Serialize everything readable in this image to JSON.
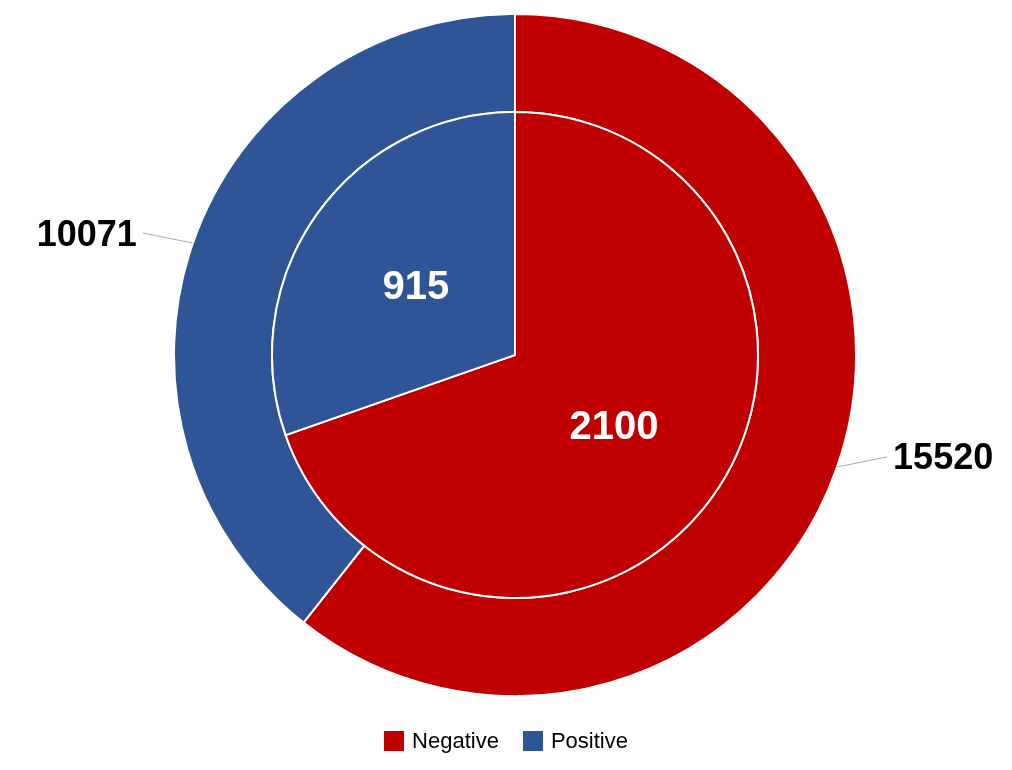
{
  "chart_data": {
    "type": "pie",
    "categories": [
      "Negative",
      "Positive"
    ],
    "colors": [
      "#c00000",
      "#2f5597"
    ],
    "series": [
      {
        "values": [
          15520,
          10071
        ]
      },
      {
        "values": [
          2100,
          915
        ]
      }
    ],
    "data_labels": true,
    "legend": "bottom"
  }
}
